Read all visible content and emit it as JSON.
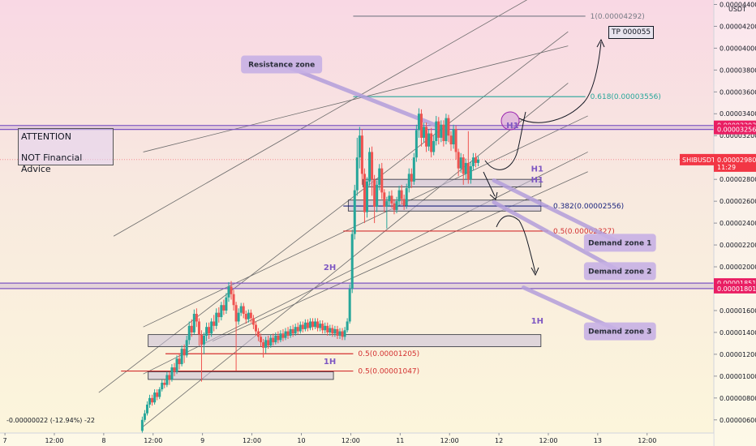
{
  "chart_data": {
    "type": "candlestick",
    "symbol": "SHIBUSDT",
    "quote_unit": "USDT",
    "y_ticks": [
      "0.00004400",
      "0.00004200",
      "0.00004000",
      "0.00003800",
      "0.00003600",
      "0.00003400",
      "0.00003200",
      "0.00003000",
      "0.00002800",
      "0.00002600",
      "0.00002400",
      "0.00002200",
      "0.00002000",
      "0.00001800",
      "0.00001600",
      "0.00001400",
      "0.00001200",
      "0.00001000",
      "0.00000800",
      "0.00000600"
    ],
    "y_tick_values": [
      4.4e-05,
      4.2e-05,
      4e-05,
      3.8e-05,
      3.6e-05,
      3.4e-05,
      3.2e-05,
      3e-05,
      2.8e-05,
      2.6e-05,
      2.4e-05,
      2.2e-05,
      2e-05,
      1.8e-05,
      1.6e-05,
      1.4e-05,
      1.2e-05,
      1e-05,
      8e-06,
      6e-06
    ],
    "ylim": [
      4.8e-06,
      4.44e-05
    ],
    "x_ticks": [
      "7",
      "12:00",
      "8",
      "12:00",
      "9",
      "12:00",
      "10",
      "12:00",
      "11",
      "12:00",
      "12",
      "12:00",
      "13",
      "12:00"
    ],
    "x_tick_values": [
      0,
      1,
      2,
      3,
      4,
      5,
      6,
      7,
      8,
      9,
      10,
      11,
      12,
      13
    ],
    "xlim": [
      -0.1,
      14.35
    ],
    "grid": false,
    "price_levels": [
      {
        "value": "0.00003293",
        "color": "#e91e63"
      },
      {
        "value": "0.00003256",
        "color": "#e91e63"
      },
      {
        "value": "0.00002980",
        "color": "#f23645",
        "label": "SHIBUSDT",
        "sub": "11:29"
      },
      {
        "value": "0.00001851",
        "color": "#e91e63"
      },
      {
        "value": "0.00001801",
        "color": "#e91e63"
      }
    ],
    "fib_levels": [
      {
        "text": "1(0.00004292)",
        "price": 4.292e-05,
        "x0": 7.05,
        "x1": 11.75,
        "color": "#787b86"
      },
      {
        "text": "0.618(0.00003556)",
        "price": 3.556e-05,
        "x0": 7.05,
        "x1": 11.75,
        "color": "#26a69a"
      },
      {
        "text": "0.382(0.00002556)",
        "price": 2.556e-05,
        "x0": 6.85,
        "x1": 11.0,
        "color": "#1a237e"
      },
      {
        "text": "0.5(0.00002327)",
        "price": 2.327e-05,
        "x0": 6.85,
        "x1": 11.0,
        "color": "#d32f2f"
      },
      {
        "text": "0.5(0.00001205)",
        "price": 1.205e-05,
        "x0": 3.25,
        "x1": 7.05,
        "color": "#d32f2f"
      },
      {
        "text": "0.5(0.00001047)",
        "price": 1.047e-05,
        "x0": 2.35,
        "x1": 7.05,
        "color": "#d32f2f"
      }
    ],
    "timeframe_labels": [
      {
        "text": "H1",
        "x": 10.15,
        "price": 3.27e-05
      },
      {
        "text": "H1",
        "x": 10.65,
        "price": 2.87e-05
      },
      {
        "text": "H1",
        "x": 10.65,
        "price": 2.77e-05
      },
      {
        "text": "2H",
        "x": 6.45,
        "price": 1.97e-05
      },
      {
        "text": "1H",
        "x": 10.65,
        "price": 1.48e-05
      },
      {
        "text": "1H",
        "x": 6.45,
        "price": 1.11e-05
      }
    ],
    "zones": [
      {
        "price_top": 2.8e-05,
        "price_bottom": 2.73e-05,
        "x0": 7.25,
        "x1": 10.85
      },
      {
        "price_top": 2.61e-05,
        "price_bottom": 2.51e-05,
        "x0": 6.95,
        "x1": 10.85
      },
      {
        "price_top": 1.38e-05,
        "price_bottom": 1.27e-05,
        "x0": 2.9,
        "x1": 10.85
      },
      {
        "price_top": 1.04e-05,
        "price_bottom": 9.7e-06,
        "x0": 2.9,
        "x1": 6.65
      }
    ],
    "callouts": [
      {
        "text": "Resistance zone",
        "cx": 5.6,
        "cy": 3.85e-05,
        "tx": 8.75,
        "ty": 3.29e-05
      },
      {
        "text": "Demand zone 1",
        "cx": 12.45,
        "cy": 2.22e-05,
        "tx": 9.9,
        "ty": 2.79e-05
      },
      {
        "text": "Demand zone 2",
        "cx": 12.45,
        "cy": 1.96e-05,
        "tx": 9.9,
        "ty": 2.59e-05
      },
      {
        "text": "Demand zone 3",
        "cx": 12.45,
        "cy": 1.41e-05,
        "tx": 10.5,
        "ty": 1.81e-05
      }
    ],
    "channel_lines": [
      [
        [
          2.8,
          5.4e-06
        ],
        [
          11.4,
          3.68e-05
        ]
      ],
      [
        [
          1.9,
          8.5e-06
        ],
        [
          11.4,
          4.15e-05
        ]
      ],
      [
        [
          2.2,
          2.28e-05
        ],
        [
          10.6,
          4.45e-05
        ]
      ],
      [
        [
          2.8,
          3.05e-05
        ],
        [
          11.4,
          4.02e-05
        ]
      ],
      [
        [
          2.8,
          1.45e-05
        ],
        [
          11.8,
          3.38e-05
        ]
      ],
      [
        [
          2.8,
          1.02e-05
        ],
        [
          11.8,
          3.05e-05
        ]
      ],
      [
        [
          4.2,
          1.32e-05
        ],
        [
          11.8,
          2.87e-05
        ]
      ]
    ],
    "candles": [
      [
        2.78,
        5e-06,
        6e-06,
        4.8e-06,
        6.3e-06
      ],
      [
        2.83,
        6e-06,
        6.6e-06,
        5.8e-06,
        6.9e-06
      ],
      [
        2.88,
        6.6e-06,
        7.4e-06,
        6.4e-06,
        7.7e-06
      ],
      [
        2.93,
        7.4e-06,
        8e-06,
        7.1e-06,
        8.3e-06
      ],
      [
        2.98,
        8e-06,
        7.6e-06,
        7.3e-06,
        8.3e-06
      ],
      [
        3.03,
        7.6e-06,
        8.5e-06,
        7.4e-06,
        8.8e-06
      ],
      [
        3.08,
        8.5e-06,
        8.1e-06,
        7.8e-06,
        8.8e-06
      ],
      [
        3.13,
        8.1e-06,
        8.8e-06,
        7.9e-06,
        9e-06
      ],
      [
        3.18,
        8.8e-06,
        9.4e-06,
        8.6e-06,
        9.7e-06
      ],
      [
        3.23,
        9.4e-06,
        9.2e-06,
        8.9e-06,
        9.7e-06
      ],
      [
        3.28,
        9.2e-06,
        1.01e-05,
        9e-06,
        1.04e-05
      ],
      [
        3.33,
        1.01e-05,
        9.7e-06,
        9.2e-06,
        1.04e-05
      ],
      [
        3.38,
        9.7e-06,
        1.08e-05,
        9.5e-06,
        1.11e-05
      ],
      [
        3.43,
        1.08e-05,
        1.04e-05,
        1e-05,
        1.12e-05
      ],
      [
        3.48,
        1.04e-05,
        1.16e-05,
        1.02e-05,
        1.19e-05
      ],
      [
        3.53,
        1.16e-05,
        1.11e-05,
        1.06e-05,
        1.2e-05
      ],
      [
        3.58,
        1.11e-05,
        1.25e-05,
        1.09e-05,
        1.28e-05
      ],
      [
        3.63,
        1.25e-05,
        1.19e-05,
        1.12e-05,
        1.29e-05
      ],
      [
        3.68,
        1.19e-05,
        1.33e-05,
        1.17e-05,
        1.37e-05
      ],
      [
        3.73,
        1.33e-05,
        1.46e-05,
        1.29e-05,
        1.5e-05
      ],
      [
        3.78,
        1.46e-05,
        1.4e-05,
        1.36e-05,
        1.52e-05
      ],
      [
        3.83,
        1.4e-05,
        1.57e-05,
        1.38e-05,
        1.61e-05
      ],
      [
        3.88,
        1.57e-05,
        1.5e-05,
        1.45e-05,
        1.62e-05
      ],
      [
        3.93,
        1.5e-05,
        1.38e-05,
        1.28e-05,
        1.53e-05
      ],
      [
        3.98,
        1.38e-05,
        1.29e-05,
        9.5e-06,
        1.42e-05
      ],
      [
        4.03,
        1.29e-05,
        1.37e-05,
        1.2e-05,
        1.4e-05
      ],
      [
        4.08,
        1.37e-05,
        1.45e-05,
        1.32e-05,
        1.49e-05
      ],
      [
        4.13,
        1.45e-05,
        1.39e-05,
        1.34e-05,
        1.49e-05
      ],
      [
        4.18,
        1.39e-05,
        1.5e-05,
        1.36e-05,
        1.53e-05
      ],
      [
        4.23,
        1.5e-05,
        1.46e-05,
        1.41e-05,
        1.56e-05
      ],
      [
        4.28,
        1.46e-05,
        1.58e-05,
        1.43e-05,
        1.62e-05
      ],
      [
        4.33,
        1.58e-05,
        1.54e-05,
        1.49e-05,
        1.63e-05
      ],
      [
        4.38,
        1.54e-05,
        1.65e-05,
        1.51e-05,
        1.68e-05
      ],
      [
        4.43,
        1.65e-05,
        1.6e-05,
        1.56e-05,
        1.7e-05
      ],
      [
        4.48,
        1.6e-05,
        1.72e-05,
        1.57e-05,
        1.76e-05
      ],
      [
        4.53,
        1.72e-05,
        1.82e-05,
        1.68e-05,
        1.86e-05
      ],
      [
        4.58,
        1.82e-05,
        1.75e-05,
        1.7e-05,
        1.87e-05
      ],
      [
        4.63,
        1.75e-05,
        1.65e-05,
        1.6e-05,
        1.79e-05
      ],
      [
        4.68,
        1.65e-05,
        1.5e-05,
        1.05e-05,
        1.68e-05
      ],
      [
        4.73,
        1.5e-05,
        1.58e-05,
        1.47e-05,
        1.62e-05
      ],
      [
        4.78,
        1.58e-05,
        1.64e-05,
        1.55e-05,
        1.67e-05
      ],
      [
        4.83,
        1.64e-05,
        1.57e-05,
        1.53e-05,
        1.67e-05
      ],
      [
        4.88,
        1.57e-05,
        1.52e-05,
        1.48e-05,
        1.6e-05
      ],
      [
        4.93,
        1.52e-05,
        1.58e-05,
        1.49e-05,
        1.61e-05
      ],
      [
        4.98,
        1.58e-05,
        1.53e-05,
        1.49e-05,
        1.61e-05
      ],
      [
        5.03,
        1.53e-05,
        1.47e-05,
        1.43e-05,
        1.56e-05
      ],
      [
        5.08,
        1.47e-05,
        1.41e-05,
        1.37e-05,
        1.5e-05
      ],
      [
        5.13,
        1.41e-05,
        1.36e-05,
        1.32e-05,
        1.44e-05
      ],
      [
        5.18,
        1.36e-05,
        1.31e-05,
        1.27e-05,
        1.39e-05
      ],
      [
        5.23,
        1.31e-05,
        1.26e-05,
        1.17e-05,
        1.34e-05
      ],
      [
        5.28,
        1.26e-05,
        1.33e-05,
        1.21e-05,
        1.36e-05
      ],
      [
        5.33,
        1.33e-05,
        1.28e-05,
        1.25e-05,
        1.37e-05
      ],
      [
        5.38,
        1.28e-05,
        1.35e-05,
        1.26e-05,
        1.38e-05
      ],
      [
        5.43,
        1.35e-05,
        1.31e-05,
        1.28e-05,
        1.39e-05
      ],
      [
        5.48,
        1.31e-05,
        1.37e-05,
        1.29e-05,
        1.4e-05
      ],
      [
        5.53,
        1.37e-05,
        1.33e-05,
        1.3e-05,
        1.41e-05
      ],
      [
        5.58,
        1.33e-05,
        1.39e-05,
        1.31e-05,
        1.42e-05
      ],
      [
        5.63,
        1.39e-05,
        1.35e-05,
        1.32e-05,
        1.43e-05
      ],
      [
        5.68,
        1.35e-05,
        1.41e-05,
        1.33e-05,
        1.44e-05
      ],
      [
        5.73,
        1.41e-05,
        1.37e-05,
        1.34e-05,
        1.45e-05
      ],
      [
        5.78,
        1.37e-05,
        1.43e-05,
        1.35e-05,
        1.46e-05
      ],
      [
        5.83,
        1.43e-05,
        1.39e-05,
        1.36e-05,
        1.47e-05
      ],
      [
        5.88,
        1.39e-05,
        1.45e-05,
        1.37e-05,
        1.48e-05
      ],
      [
        5.93,
        1.45e-05,
        1.41e-05,
        1.38e-05,
        1.49e-05
      ],
      [
        5.98,
        1.41e-05,
        1.47e-05,
        1.39e-05,
        1.5e-05
      ],
      [
        6.03,
        1.47e-05,
        1.43e-05,
        1.4e-05,
        1.5e-05
      ],
      [
        6.08,
        1.43e-05,
        1.49e-05,
        1.41e-05,
        1.52e-05
      ],
      [
        6.13,
        1.49e-05,
        1.44e-05,
        1.41e-05,
        1.52e-05
      ],
      [
        6.18,
        1.44e-05,
        1.5e-05,
        1.42e-05,
        1.53e-05
      ],
      [
        6.23,
        1.5e-05,
        1.45e-05,
        1.42e-05,
        1.53e-05
      ],
      [
        6.28,
        1.45e-05,
        1.5e-05,
        1.43e-05,
        1.53e-05
      ],
      [
        6.33,
        1.5e-05,
        1.44e-05,
        1.41e-05,
        1.53e-05
      ],
      [
        6.38,
        1.44e-05,
        1.48e-05,
        1.41e-05,
        1.51e-05
      ],
      [
        6.43,
        1.48e-05,
        1.42e-05,
        1.39e-05,
        1.51e-05
      ],
      [
        6.48,
        1.42e-05,
        1.46e-05,
        1.39e-05,
        1.49e-05
      ],
      [
        6.53,
        1.46e-05,
        1.4e-05,
        1.37e-05,
        1.49e-05
      ],
      [
        6.58,
        1.4e-05,
        1.44e-05,
        1.37e-05,
        1.47e-05
      ],
      [
        6.63,
        1.44e-05,
        1.39e-05,
        1.36e-05,
        1.47e-05
      ],
      [
        6.68,
        1.39e-05,
        1.43e-05,
        1.36e-05,
        1.46e-05
      ],
      [
        6.73,
        1.43e-05,
        1.37e-05,
        1.34e-05,
        1.46e-05
      ],
      [
        6.78,
        1.37e-05,
        1.41e-05,
        1.34e-05,
        1.44e-05
      ],
      [
        6.83,
        1.41e-05,
        1.36e-05,
        1.33e-05,
        1.44e-05
      ],
      [
        6.88,
        1.36e-05,
        1.42e-05,
        1.33e-05,
        1.45e-05
      ],
      [
        6.93,
        1.42e-05,
        1.5e-05,
        1.4e-05,
        1.53e-05
      ],
      [
        6.98,
        1.5e-05,
        1.8e-05,
        1.48e-05,
        1.84e-05
      ],
      [
        7.03,
        1.8e-05,
        2.3e-05,
        1.76e-05,
        2.34e-05
      ],
      [
        7.08,
        2.3e-05,
        2.7e-05,
        2.25e-05,
        2.75e-05
      ],
      [
        7.13,
        2.7e-05,
        3e-05,
        2.65e-05,
        3.18e-05
      ],
      [
        7.18,
        3e-05,
        3.2e-05,
        2.9e-05,
        3.28e-05
      ],
      [
        7.23,
        3.2e-05,
        2.85e-05,
        2.75e-05,
        3.26e-05
      ],
      [
        7.28,
        2.85e-05,
        2.5e-05,
        2.4e-05,
        2.9e-05
      ],
      [
        7.33,
        2.5e-05,
        2.78e-05,
        2.45e-05,
        2.82e-05
      ],
      [
        7.38,
        2.78e-05,
        3.05e-05,
        2.74e-05,
        3.09e-05
      ],
      [
        7.43,
        3.05e-05,
        2.8e-05,
        2.65e-05,
        3.1e-05
      ],
      [
        7.48,
        2.8e-05,
        2.55e-05,
        2.4e-05,
        2.84e-05
      ],
      [
        7.53,
        2.55e-05,
        2.75e-05,
        2.5e-05,
        2.79e-05
      ],
      [
        7.58,
        2.75e-05,
        2.9e-05,
        2.7e-05,
        2.94e-05
      ],
      [
        7.63,
        2.9e-05,
        2.68e-05,
        2.62e-05,
        2.95e-05
      ],
      [
        7.68,
        2.68e-05,
        2.55e-05,
        2.5e-05,
        2.71e-05
      ],
      [
        7.73,
        2.55e-05,
        2.6e-05,
        2.35e-05,
        2.64e-05
      ],
      [
        7.78,
        2.6e-05,
        2.65e-05,
        2.55e-05,
        2.69e-05
      ],
      [
        7.83,
        2.65e-05,
        2.58e-05,
        2.54e-05,
        2.7e-05
      ],
      [
        7.88,
        2.58e-05,
        2.52e-05,
        2.48e-05,
        2.62e-05
      ],
      [
        7.93,
        2.52e-05,
        2.6e-05,
        2.49e-05,
        2.64e-05
      ],
      [
        7.98,
        2.6e-05,
        2.7e-05,
        2.56e-05,
        2.74e-05
      ],
      [
        8.03,
        2.7e-05,
        2.62e-05,
        2.57e-05,
        2.75e-05
      ],
      [
        8.08,
        2.62e-05,
        2.56e-05,
        2.52e-05,
        2.66e-05
      ],
      [
        8.13,
        2.56e-05,
        2.72e-05,
        2.53e-05,
        2.76e-05
      ],
      [
        8.18,
        2.72e-05,
        2.85e-05,
        2.68e-05,
        2.9e-05
      ],
      [
        8.23,
        2.85e-05,
        2.78e-05,
        2.72e-05,
        2.9e-05
      ],
      [
        8.28,
        2.78e-05,
        3e-05,
        2.75e-05,
        3.04e-05
      ],
      [
        8.33,
        3e-05,
        3.25e-05,
        2.96e-05,
        3.3e-05
      ],
      [
        8.38,
        3.25e-05,
        3.4e-05,
        3.18e-05,
        3.45e-05
      ],
      [
        8.43,
        3.4e-05,
        3.18e-05,
        3.1e-05,
        3.44e-05
      ],
      [
        8.48,
        3.18e-05,
        3.28e-05,
        3.14e-05,
        3.32e-05
      ],
      [
        8.53,
        3.28e-05,
        3.1e-05,
        3.05e-05,
        3.32e-05
      ],
      [
        8.58,
        3.1e-05,
        3.22e-05,
        3.06e-05,
        3.26e-05
      ],
      [
        8.63,
        3.22e-05,
        3.05e-05,
        3e-05,
        3.27e-05
      ],
      [
        8.68,
        3.05e-05,
        3.15e-05,
        3.02e-05,
        3.2e-05
      ],
      [
        8.73,
        3.15e-05,
        3.33e-05,
        3.11e-05,
        3.38e-05
      ],
      [
        8.78,
        3.33e-05,
        3.18e-05,
        3.12e-05,
        3.37e-05
      ],
      [
        8.83,
        3.18e-05,
        3.3e-05,
        3.14e-05,
        3.34e-05
      ],
      [
        8.88,
        3.3e-05,
        3.15e-05,
        3.1e-05,
        3.34e-05
      ],
      [
        8.93,
        3.15e-05,
        3.36e-05,
        3.12e-05,
        3.4e-05
      ],
      [
        8.98,
        3.36e-05,
        3.2e-05,
        3.14e-05,
        3.39e-05
      ],
      [
        9.03,
        3.2e-05,
        3.12e-05,
        3.06e-05,
        3.24e-05
      ],
      [
        9.08,
        3.12e-05,
        3.26e-05,
        3.08e-05,
        3.3e-05
      ],
      [
        9.13,
        3.26e-05,
        3.05e-05,
        2.98e-05,
        3.29e-05
      ],
      [
        9.18,
        3.05e-05,
        2.9e-05,
        2.83e-05,
        3.08e-05
      ],
      [
        9.23,
        2.9e-05,
        3e-05,
        2.86e-05,
        3.04e-05
      ],
      [
        9.28,
        3e-05,
        2.85e-05,
        2.75e-05,
        3.03e-05
      ],
      [
        9.33,
        2.85e-05,
        2.95e-05,
        2.8e-05,
        2.99e-05
      ],
      [
        9.38,
        2.95e-05,
        2.8e-05,
        2.76e-05,
        3.24e-05
      ],
      [
        9.43,
        2.8e-05,
        2.92e-05,
        2.76e-05,
        2.96e-05
      ],
      [
        9.48,
        2.92e-05,
        3e-05,
        2.88e-05,
        3.04e-05
      ],
      [
        9.53,
        3e-05,
        2.95e-05,
        2.91e-05,
        3.04e-05
      ],
      [
        9.58,
        2.95e-05,
        2.98e-05,
        2.92e-05,
        3.01e-05
      ]
    ]
  },
  "labels": {
    "attention_line1": "ATTENTION",
    "attention_line2": "NOT Financial Advice",
    "tp": "TP 000055",
    "status": "-0.00000022 (-12.94%) -22"
  }
}
